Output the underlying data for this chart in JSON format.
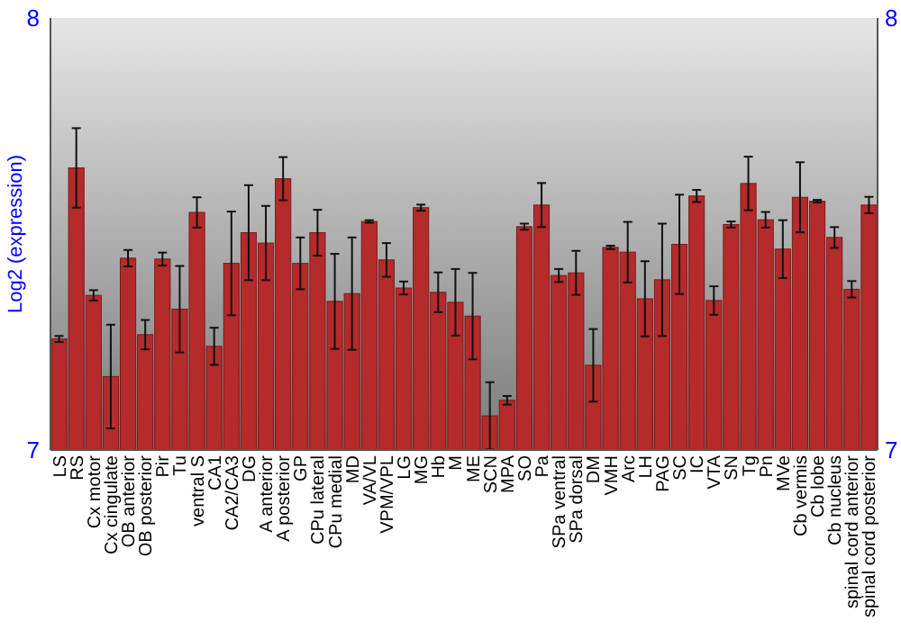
{
  "chart_data": {
    "type": "bar",
    "ylabel": "Log2 (expression)",
    "categories": [
      "LS",
      "RS",
      "Cx motor",
      "Cx cingulate",
      "OB anterior",
      "OB posterior",
      "Pir",
      "Tu",
      "ventral S",
      "CA1",
      "CA2/CA3",
      "DG",
      "A anterior",
      "A posterior",
      "GP",
      "CPu lateral",
      "CPu medial",
      "MD",
      "VA/VL",
      "VPM/VPL",
      "LG",
      "MG",
      "Hb",
      "M",
      "ME",
      "SCN",
      "MPA",
      "SO",
      "Pa",
      "SPa ventral",
      "SPa dorsal",
      "DM",
      "VMH",
      "Arc",
      "LH",
      "PAG",
      "SC",
      "IC",
      "VTA",
      "SN",
      "Tg",
      "Pn",
      "MVe",
      "Cb vermis",
      "Cb lobe",
      "Cb nucleus",
      "spinal cord anterior",
      "spinal cord posterior"
    ],
    "series": [
      {
        "color": "#b52a2a",
        "values": [
          7.257,
          7.653,
          7.358,
          7.17,
          7.444,
          7.267,
          7.442,
          7.326,
          7.55,
          7.24,
          7.432,
          7.503,
          7.479,
          7.628,
          7.432,
          7.503,
          7.344,
          7.362,
          7.529,
          7.44,
          7.375,
          7.561,
          7.365,
          7.342,
          7.31,
          7.079,
          7.115,
          7.517,
          7.567,
          7.404,
          7.41,
          7.196,
          7.469,
          7.458,
          7.35,
          7.394,
          7.476,
          7.588,
          7.346,
          7.522,
          7.617,
          7.533,
          7.465,
          7.585,
          7.576,
          7.492,
          7.372,
          7.567
        ],
        "errors": [
          0.007,
          0.092,
          0.012,
          0.12,
          0.019,
          0.034,
          0.015,
          0.1,
          0.035,
          0.043,
          0.12,
          0.11,
          0.086,
          0.05,
          0.06,
          0.053,
          0.11,
          0.13,
          0.003,
          0.039,
          0.015,
          0.007,
          0.046,
          0.077,
          0.1,
          0.078,
          0.01,
          0.007,
          0.051,
          0.015,
          0.051,
          0.084,
          0.004,
          0.07,
          0.087,
          0.13,
          0.115,
          0.014,
          0.033,
          0.007,
          0.062,
          0.018,
          0.067,
          0.081,
          0.003,
          0.024,
          0.019,
          0.019
        ]
      }
    ],
    "ylim": [
      7,
      8
    ],
    "yticks": [
      7,
      8
    ],
    "y2lim": [
      7,
      8
    ],
    "y2ticks": [
      7,
      8
    ]
  }
}
